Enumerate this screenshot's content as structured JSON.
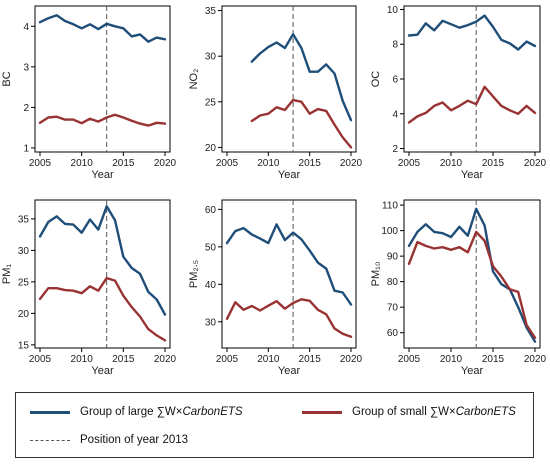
{
  "chart_data": [
    {
      "type": "line",
      "ylabel": "BC",
      "xlabel": "Year",
      "xlim": [
        2005,
        2020
      ],
      "ylim": [
        0.9,
        4.5
      ],
      "yticks": [
        1,
        2,
        3,
        4
      ],
      "xticks": [
        2005,
        2010,
        2015,
        2020
      ],
      "vline": 2013,
      "series": [
        {
          "name": "Group of large ∑W×CarbonETS",
          "color": "#1f4e79",
          "x": [
            2005,
            2006,
            2007,
            2008,
            2009,
            2010,
            2011,
            2012,
            2013,
            2014,
            2015,
            2016,
            2017,
            2018,
            2019,
            2020
          ],
          "y": [
            4.1,
            4.2,
            4.27,
            4.13,
            4.05,
            3.95,
            4.05,
            3.93,
            4.06,
            4.0,
            3.95,
            3.75,
            3.8,
            3.62,
            3.72,
            3.68
          ]
        },
        {
          "name": "Group of small ∑W×CarbonETS",
          "color": "#993333",
          "x": [
            2005,
            2006,
            2007,
            2008,
            2009,
            2010,
            2011,
            2012,
            2013,
            2014,
            2015,
            2016,
            2017,
            2018,
            2019,
            2020
          ],
          "y": [
            1.62,
            1.75,
            1.77,
            1.7,
            1.7,
            1.61,
            1.72,
            1.65,
            1.75,
            1.82,
            1.75,
            1.67,
            1.6,
            1.55,
            1.62,
            1.6
          ]
        }
      ]
    },
    {
      "type": "line",
      "ylabel": "NO₂",
      "xlabel": "Year",
      "xlim": [
        2005,
        2020
      ],
      "ylim": [
        19.5,
        35.5
      ],
      "yticks": [
        20,
        25,
        30,
        35
      ],
      "xticks": [
        2005,
        2010,
        2015,
        2020
      ],
      "vline": 2013,
      "series": [
        {
          "name": "Group of large ∑W×CarbonETS",
          "color": "#1f4e79",
          "x": [
            2008,
            2009,
            2010,
            2011,
            2012,
            2013,
            2014,
            2015,
            2016,
            2017,
            2018,
            2019,
            2020
          ],
          "y": [
            29.4,
            30.3,
            31.0,
            31.5,
            30.9,
            32.4,
            30.9,
            28.3,
            28.3,
            29.1,
            28.1,
            25.1,
            23.0
          ]
        },
        {
          "name": "Group of small ∑W×CarbonETS",
          "color": "#993333",
          "x": [
            2008,
            2009,
            2010,
            2011,
            2012,
            2013,
            2014,
            2015,
            2016,
            2017,
            2018,
            2019,
            2020
          ],
          "y": [
            22.9,
            23.5,
            23.7,
            24.4,
            24.1,
            25.2,
            25.0,
            23.7,
            24.2,
            24.0,
            22.5,
            21.1,
            20.0
          ]
        }
      ]
    },
    {
      "type": "line",
      "ylabel": "OC",
      "xlabel": "Year",
      "xlim": [
        2005,
        2020
      ],
      "ylim": [
        1.8,
        10.2
      ],
      "yticks": [
        2,
        4,
        6,
        8,
        10
      ],
      "xticks": [
        2005,
        2010,
        2015,
        2020
      ],
      "vline": 2013,
      "series": [
        {
          "name": "Group of large ∑W×CarbonETS",
          "color": "#1f4e79",
          "x": [
            2005,
            2006,
            2007,
            2008,
            2009,
            2010,
            2011,
            2012,
            2013,
            2014,
            2015,
            2016,
            2017,
            2018,
            2019,
            2020
          ],
          "y": [
            8.5,
            8.55,
            9.2,
            8.8,
            9.35,
            9.15,
            8.95,
            9.1,
            9.3,
            9.65,
            9.0,
            8.25,
            8.05,
            7.7,
            8.15,
            7.9
          ]
        },
        {
          "name": "Group of small ∑W×CarbonETS",
          "color": "#993333",
          "x": [
            2005,
            2006,
            2007,
            2008,
            2009,
            2010,
            2011,
            2012,
            2013,
            2014,
            2015,
            2016,
            2017,
            2018,
            2019,
            2020
          ],
          "y": [
            3.5,
            3.85,
            4.05,
            4.45,
            4.65,
            4.2,
            4.45,
            4.75,
            4.55,
            5.55,
            5.0,
            4.45,
            4.2,
            4.0,
            4.45,
            4.05
          ]
        }
      ]
    },
    {
      "type": "line",
      "ylabel": "PM₁",
      "xlabel": "Year",
      "xlim": [
        2005,
        2020
      ],
      "ylim": [
        14.5,
        38
      ],
      "yticks": [
        15,
        20,
        25,
        30,
        35
      ],
      "xticks": [
        2005,
        2010,
        2015,
        2020
      ],
      "vline": 2013,
      "series": [
        {
          "name": "Group of large ∑W×CarbonETS",
          "color": "#1f4e79",
          "x": [
            2005,
            2006,
            2007,
            2008,
            2009,
            2010,
            2011,
            2012,
            2013,
            2014,
            2015,
            2016,
            2017,
            2018,
            2019,
            2020
          ],
          "y": [
            32.2,
            34.5,
            35.4,
            34.2,
            34.1,
            32.8,
            34.9,
            33.3,
            37.0,
            34.8,
            29.0,
            27.2,
            26.3,
            23.4,
            22.2,
            19.8
          ]
        },
        {
          "name": "Group of small ∑W×CarbonETS",
          "color": "#993333",
          "x": [
            2005,
            2006,
            2007,
            2008,
            2009,
            2010,
            2011,
            2012,
            2013,
            2014,
            2015,
            2016,
            2017,
            2018,
            2019,
            2020
          ],
          "y": [
            22.3,
            24.0,
            24.0,
            23.7,
            23.6,
            23.2,
            24.3,
            23.6,
            25.6,
            25.2,
            22.8,
            21.0,
            19.5,
            17.5,
            16.5,
            15.7
          ]
        }
      ]
    },
    {
      "type": "line",
      "ylabel": "PM₂.₅",
      "xlabel": "Year",
      "xlim": [
        2005,
        2020
      ],
      "ylim": [
        23,
        62.5
      ],
      "yticks": [
        30,
        40,
        50,
        60
      ],
      "xticks": [
        2005,
        2010,
        2015,
        2020
      ],
      "vline": 2013,
      "series": [
        {
          "name": "Group of large ∑W×CarbonETS",
          "color": "#1f4e79",
          "x": [
            2005,
            2006,
            2007,
            2008,
            2009,
            2010,
            2011,
            2012,
            2013,
            2014,
            2015,
            2016,
            2017,
            2018,
            2019,
            2020
          ],
          "y": [
            51.0,
            54.2,
            55.0,
            53.3,
            52.2,
            51.0,
            56.0,
            51.8,
            53.8,
            52.0,
            49.0,
            45.8,
            44.2,
            38.3,
            37.8,
            34.6
          ]
        },
        {
          "name": "Group of small ∑W×CarbonETS",
          "color": "#993333",
          "x": [
            2005,
            2006,
            2007,
            2008,
            2009,
            2010,
            2011,
            2012,
            2013,
            2014,
            2015,
            2016,
            2017,
            2018,
            2019,
            2020
          ],
          "y": [
            30.8,
            35.2,
            33.2,
            34.2,
            33.0,
            34.3,
            35.5,
            33.5,
            35.0,
            36.0,
            35.6,
            33.2,
            32.0,
            28.2,
            26.8,
            26.0
          ]
        }
      ]
    },
    {
      "type": "line",
      "ylabel": "PM₁₀",
      "xlabel": "Year",
      "xlim": [
        2005,
        2020
      ],
      "ylim": [
        54,
        112
      ],
      "yticks": [
        60,
        70,
        80,
        90,
        100,
        110
      ],
      "xticks": [
        2005,
        2010,
        2015,
        2020
      ],
      "vline": 2013,
      "series": [
        {
          "name": "Group of large ∑W×CarbonETS",
          "color": "#1f4e79",
          "x": [
            2005,
            2006,
            2007,
            2008,
            2009,
            2010,
            2011,
            2012,
            2013,
            2014,
            2015,
            2016,
            2017,
            2018,
            2019,
            2020
          ],
          "y": [
            94.0,
            99.5,
            102.5,
            99.5,
            99.0,
            97.5,
            101.5,
            98.0,
            108.5,
            102.0,
            84.0,
            79.0,
            77.0,
            70.0,
            62.0,
            56.5
          ]
        },
        {
          "name": "Group of small ∑W×CarbonETS",
          "color": "#993333",
          "x": [
            2005,
            2006,
            2007,
            2008,
            2009,
            2010,
            2011,
            2012,
            2013,
            2014,
            2015,
            2016,
            2017,
            2018,
            2019,
            2020
          ],
          "y": [
            87.0,
            95.5,
            94.0,
            93.0,
            93.5,
            92.5,
            93.5,
            91.5,
            99.5,
            96.0,
            86.0,
            82.0,
            77.0,
            76.0,
            63.0,
            58.0
          ]
        }
      ]
    }
  ],
  "legend": {
    "large_prefix": "Group of large ∑W×",
    "large_italic": "CarbonETS",
    "small_prefix": "Group of small ∑W×",
    "small_italic": "CarbonETS",
    "vline_label": "Position of year 2013"
  },
  "colors": {
    "large": "#1f4e79",
    "small": "#993333",
    "vline": "#555555"
  }
}
